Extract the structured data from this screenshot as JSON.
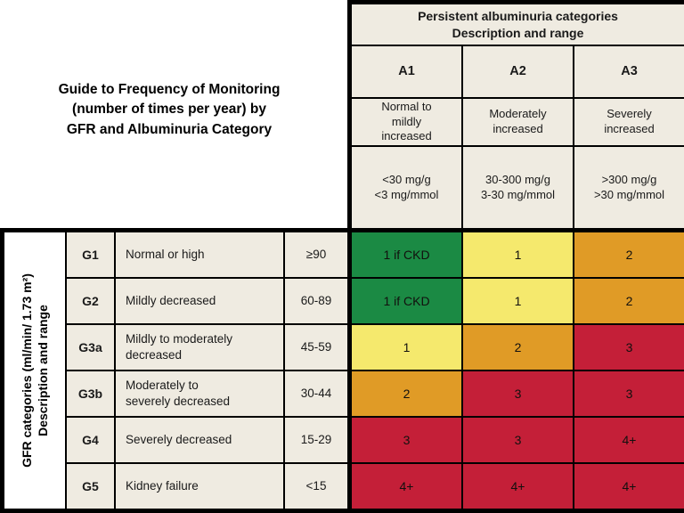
{
  "title": "Guide to Frequency of Monitoring\n(number of times per year) by\nGFR and Albuminuria Category",
  "colors": {
    "green": "#1B8A44",
    "yellow": "#F5E96D",
    "orange": "#E09B26",
    "red": "#C41F38",
    "beige": "#EFEBE1",
    "border": "#000000"
  },
  "albuminuria": {
    "header": "Persistent albuminuria categories\nDescription and range",
    "columns": [
      {
        "code": "A1",
        "description": "Normal to\nmildly\nincreased",
        "range": "<30 mg/g\n<3 mg/mmol"
      },
      {
        "code": "A2",
        "description": "Moderately\nincreased",
        "range": "30-300 mg/g\n3-30 mg/mmol"
      },
      {
        "code": "A3",
        "description": "Severely\nincreased",
        "range": ">300 mg/g\n>30 mg/mmol"
      }
    ]
  },
  "gfr": {
    "axis_label": "GFR categories (ml/min/ 1.73 m²)\nDescription and range",
    "rows": [
      {
        "code": "G1",
        "description": "Normal or high",
        "range": "≥90",
        "cells": [
          {
            "text": "1 if CKD",
            "color": "green"
          },
          {
            "text": "1",
            "color": "yellow"
          },
          {
            "text": "2",
            "color": "orange"
          }
        ]
      },
      {
        "code": "G2",
        "description": "Mildly decreased",
        "range": "60-89",
        "cells": [
          {
            "text": "1 if CKD",
            "color": "green"
          },
          {
            "text": "1",
            "color": "yellow"
          },
          {
            "text": "2",
            "color": "orange"
          }
        ]
      },
      {
        "code": "G3a",
        "description": "Mildly to moderately\ndecreased",
        "range": "45-59",
        "cells": [
          {
            "text": "1",
            "color": "yellow"
          },
          {
            "text": "2",
            "color": "orange"
          },
          {
            "text": "3",
            "color": "red"
          }
        ]
      },
      {
        "code": "G3b",
        "description": "Moderately to\nseverely decreased",
        "range": "30-44",
        "cells": [
          {
            "text": "2",
            "color": "orange"
          },
          {
            "text": "3",
            "color": "red"
          },
          {
            "text": "3",
            "color": "red"
          }
        ]
      },
      {
        "code": "G4",
        "description": "Severely decreased",
        "range": "15-29",
        "cells": [
          {
            "text": "3",
            "color": "red"
          },
          {
            "text": "3",
            "color": "red"
          },
          {
            "text": "4+",
            "color": "red"
          }
        ]
      },
      {
        "code": "G5",
        "description": "Kidney failure",
        "range": "<15",
        "cells": [
          {
            "text": "4+",
            "color": "red"
          },
          {
            "text": "4+",
            "color": "red"
          },
          {
            "text": "4+",
            "color": "red"
          }
        ]
      }
    ]
  },
  "chart_data": {
    "type": "heatmap",
    "title": "Guide to Frequency of Monitoring (number of times per year) by GFR and Albuminuria Category",
    "x_axis_label": "Persistent albuminuria categories — Description and range",
    "y_axis_label": "GFR categories (ml/min/ 1.73 m²) — Description and range",
    "x_categories": [
      "A1",
      "A2",
      "A3"
    ],
    "x_category_descriptions": [
      "Normal to mildly increased",
      "Moderately increased",
      "Severely increased"
    ],
    "x_category_ranges": [
      "<30 mg/g; <3 mg/mmol",
      "30-300 mg/g; 3-30 mg/mmol",
      ">300 mg/g; >30 mg/mmol"
    ],
    "y_categories": [
      "G1",
      "G2",
      "G3a",
      "G3b",
      "G4",
      "G5"
    ],
    "y_category_descriptions": [
      "Normal or high",
      "Mildly decreased",
      "Mildly to moderately decreased",
      "Moderately to severely decreased",
      "Severely decreased",
      "Kidney failure"
    ],
    "y_category_ranges": [
      "≥90",
      "60-89",
      "45-59",
      "30-44",
      "15-29",
      "<15"
    ],
    "values": [
      [
        "1 if CKD",
        "1",
        "2"
      ],
      [
        "1 if CKD",
        "1",
        "2"
      ],
      [
        "1",
        "2",
        "3"
      ],
      [
        "2",
        "3",
        "3"
      ],
      [
        "3",
        "3",
        "4+"
      ],
      [
        "4+",
        "4+",
        "4+"
      ]
    ],
    "cell_colors": [
      [
        "green",
        "yellow",
        "orange"
      ],
      [
        "green",
        "yellow",
        "orange"
      ],
      [
        "yellow",
        "orange",
        "red"
      ],
      [
        "orange",
        "red",
        "red"
      ],
      [
        "red",
        "red",
        "red"
      ],
      [
        "red",
        "red",
        "red"
      ]
    ],
    "legend_position": "none",
    "grid": true
  }
}
